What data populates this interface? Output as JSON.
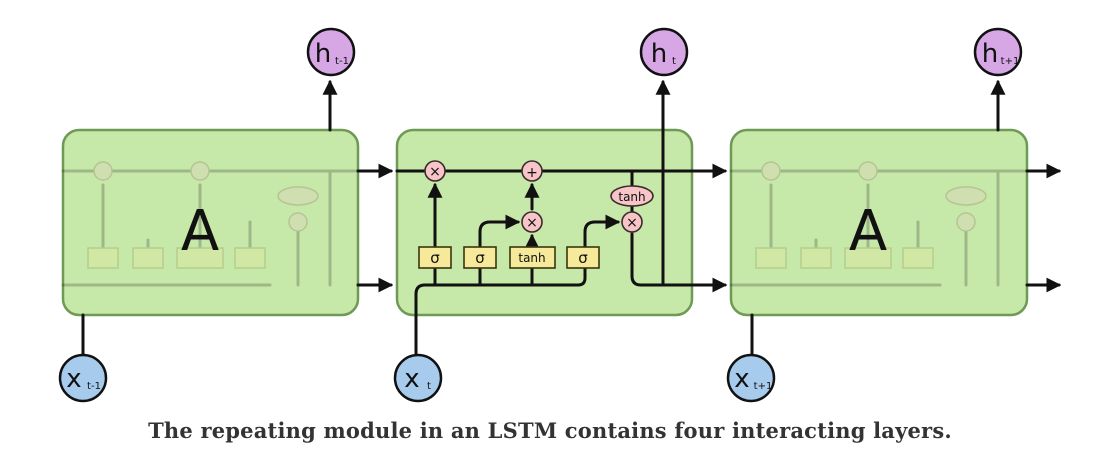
{
  "colors": {
    "cell_fill": "#c6e8a8",
    "cell_stroke": "#6f9a55",
    "layer_fill": "#f6e99a",
    "layer_stroke": "#7d7430",
    "op_fill": "#f7c4c8",
    "op_stroke": "#7a4a4e",
    "hidden_fill": "#d7a6e4",
    "input_fill": "#a7cbed",
    "line": "#111111"
  },
  "cells": {
    "left_label": "A",
    "right_label": "A"
  },
  "nodes": {
    "h_prev": {
      "base": "h",
      "sub": "t-1"
    },
    "h_curr": {
      "base": "h",
      "sub": "t"
    },
    "h_next": {
      "base": "h",
      "sub": "t+1"
    },
    "x_prev": {
      "base": "x",
      "sub": "t-1"
    },
    "x_curr": {
      "base": "x",
      "sub": "t"
    },
    "x_next": {
      "base": "x",
      "sub": "t+1"
    }
  },
  "layers": {
    "forget": "σ",
    "input": "σ",
    "candidate": "tanh",
    "output": "σ"
  },
  "ops": {
    "forget_mult": "×",
    "add": "+",
    "input_mult": "×",
    "output_tanh": "tanh",
    "output_mult": "×"
  },
  "caption": "The repeating module in an LSTM contains four interacting layers."
}
